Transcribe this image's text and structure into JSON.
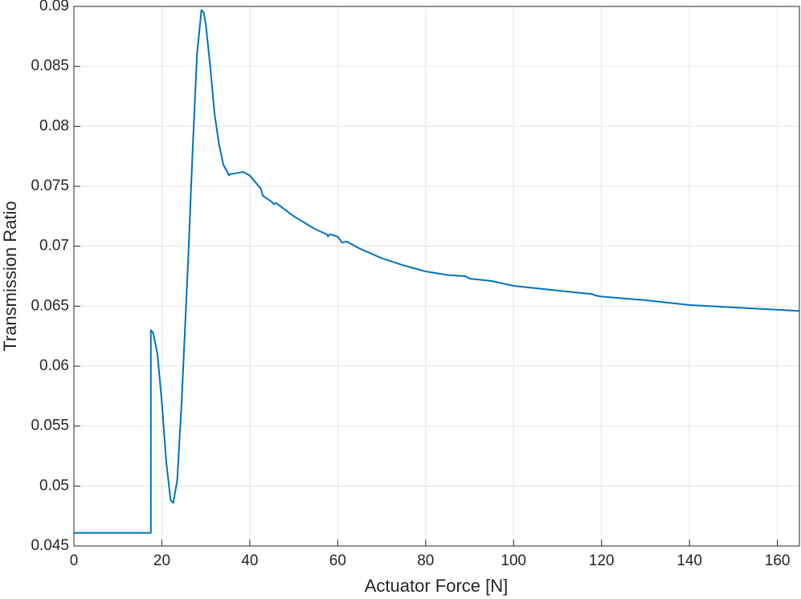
{
  "chart_data": {
    "type": "line",
    "x_label": "Actuator Force [N]",
    "y_label": "Transmission Ratio",
    "color": "#0072bd",
    "grid": true,
    "x": [
      0,
      17.5,
      17.5,
      18,
      19,
      20,
      21,
      22,
      22.6,
      23.5,
      24.5,
      26,
      27,
      28,
      29,
      29.5,
      30,
      31,
      32,
      33,
      34,
      35,
      35.3,
      35.5,
      37,
      38.5,
      40,
      42.5,
      43,
      45,
      45.5,
      46,
      50,
      55,
      57.5,
      57.8,
      58.2,
      60,
      61,
      62,
      65,
      70,
      75,
      80,
      85,
      89,
      90,
      95,
      100,
      110,
      118,
      118.5,
      120,
      130,
      135,
      140,
      150,
      160,
      165
    ],
    "values": [
      0.0461,
      0.0461,
      0.063,
      0.0628,
      0.061,
      0.057,
      0.052,
      0.0488,
      0.0486,
      0.0505,
      0.057,
      0.069,
      0.078,
      0.086,
      0.0897,
      0.0895,
      0.0885,
      0.085,
      0.081,
      0.0785,
      0.0768,
      0.0761,
      0.0759,
      0.076,
      0.0761,
      0.0762,
      0.0759,
      0.0748,
      0.0742,
      0.0737,
      0.0735,
      0.0736,
      0.0725,
      0.0714,
      0.071,
      0.0708,
      0.071,
      0.0708,
      0.0703,
      0.0704,
      0.0698,
      0.069,
      0.0684,
      0.0679,
      0.0676,
      0.0675,
      0.0673,
      0.0671,
      0.0667,
      0.0663,
      0.066,
      0.0659,
      0.0658,
      0.0655,
      0.0653,
      0.0651,
      0.0649,
      0.0647,
      0.0646
    ],
    "xlim": [
      0,
      165
    ],
    "ylim": [
      0.045,
      0.09
    ],
    "xticks": [
      0,
      20,
      40,
      60,
      80,
      100,
      120,
      140,
      160
    ],
    "yticks": [
      0.045,
      0.05,
      0.055,
      0.06,
      0.065,
      0.07,
      0.075,
      0.08,
      0.085,
      0.09
    ]
  }
}
